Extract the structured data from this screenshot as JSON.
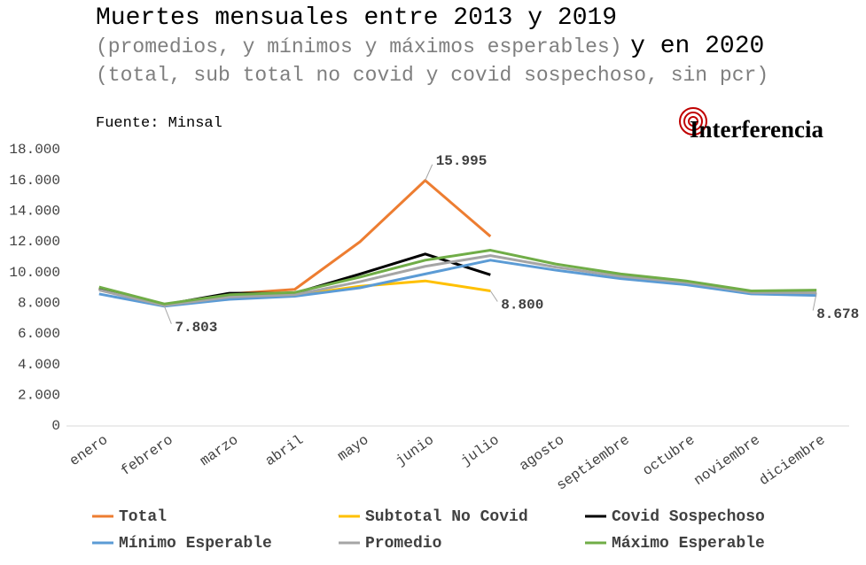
{
  "chart_data": {
    "type": "line",
    "title": "Muertes mensuales entre 2013 y 2019",
    "subtitle": "(promedios, y mínimos y máximos esperables)",
    "title_2": "y en 2020",
    "subtitle_2": "(total, sub total no covid y covid sospechoso, sin pcr)",
    "source": "Fuente: Minsal",
    "logo": "Interferencia",
    "categories": [
      "enero",
      "febrero",
      "marzo",
      "abril",
      "mayo",
      "junio",
      "julio",
      "agosto",
      "septiembre",
      "octubre",
      "noviembre",
      "diciembre"
    ],
    "ylim": [
      0,
      18000
    ],
    "yticks": [
      0,
      {
        "value": 2000,
        "label": "2.000"
      },
      {
        "value": 4000,
        "label": "4.000"
      },
      {
        "value": 6000,
        "label": "6.000"
      },
      {
        "value": 8000,
        "label": "8.000"
      },
      {
        "value": 10000,
        "label": "10.000"
      },
      {
        "value": 12000,
        "label": "12.000"
      },
      {
        "value": 14000,
        "label": "14.000"
      },
      {
        "value": 16000,
        "label": "16.000"
      },
      {
        "value": 18000,
        "label": "18.000"
      }
    ],
    "grid": false,
    "legend": "bottom",
    "series": [
      {
        "name": "Total",
        "color": "#ed7d31",
        "values": [
          9000,
          7900,
          8600,
          8900,
          12000,
          15995,
          12350,
          null,
          null,
          null,
          null,
          null
        ],
        "value_labels": [
          null,
          null,
          null,
          null,
          null,
          "15.995",
          null,
          null,
          null,
          null,
          null,
          null
        ]
      },
      {
        "name": "Subtotal No Covid",
        "color": "#ffc000",
        "values": [
          8950,
          7850,
          8550,
          8500,
          9100,
          9450,
          8800,
          null,
          null,
          null,
          null,
          null
        ],
        "value_labels": [
          null,
          null,
          null,
          null,
          null,
          null,
          "8.800",
          null,
          null,
          null,
          null,
          null
        ]
      },
      {
        "name": "Covid Sospechoso",
        "color": "#000000",
        "values": [
          8950,
          7900,
          8650,
          8650,
          9900,
          11200,
          9850,
          null,
          null,
          null,
          null,
          null
        ]
      },
      {
        "name": "Mínimo Esperable",
        "color": "#5b9bd5",
        "values": [
          8600,
          7803,
          8250,
          8450,
          9000,
          9900,
          10800,
          10150,
          9600,
          9200,
          8600,
          8500
        ],
        "value_labels": [
          null,
          "7.803",
          null,
          null,
          null,
          null,
          null,
          null,
          null,
          null,
          null,
          null
        ]
      },
      {
        "name": "Promedio",
        "color": "#a5a5a5",
        "values": [
          8850,
          7850,
          8400,
          8550,
          9400,
          10400,
          11100,
          10350,
          9750,
          9350,
          8700,
          8678
        ],
        "value_labels": [
          null,
          null,
          null,
          null,
          null,
          null,
          null,
          null,
          null,
          null,
          null,
          "8.678"
        ]
      },
      {
        "name": "Máximo Esperable",
        "color": "#70ad47",
        "values": [
          9050,
          7950,
          8550,
          8700,
          9700,
          10800,
          11450,
          10550,
          9900,
          9450,
          8800,
          8850
        ]
      }
    ]
  }
}
